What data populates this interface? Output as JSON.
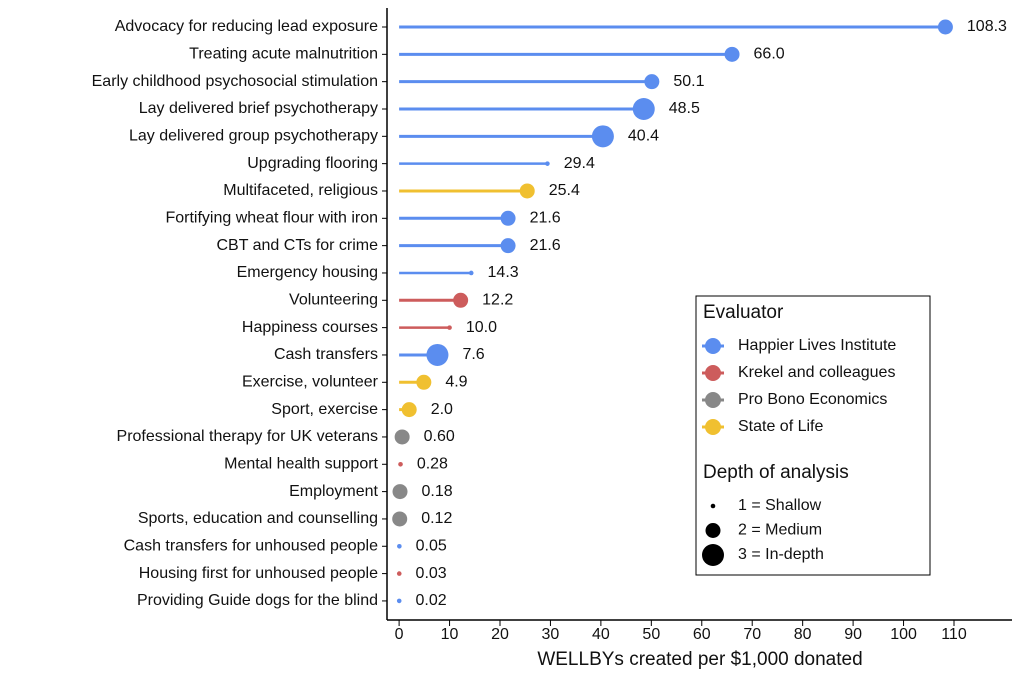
{
  "chart_data": {
    "type": "lollipop",
    "categories": [
      "Advocacy for reducing lead exposure",
      "Treating acute malnutrition",
      "Early childhood psychosocial stimulation",
      "Lay delivered brief psychotherapy",
      "Lay delivered group psychotherapy",
      "Upgrading flooring",
      "Multifaceted, religious",
      "Fortifying wheat flour with iron",
      "CBT and CTs for crime",
      "Emergency housing",
      "Volunteering",
      "Happiness courses",
      "Cash transfers",
      "Exercise, volunteer",
      "Sport, exercise",
      "Professional therapy for UK veterans",
      "Mental health support",
      "Employment",
      "Sports, education and counselling",
      "Cash transfers for unhoused people",
      "Housing first for unhoused people",
      "Providing Guide dogs for the blind"
    ],
    "values": [
      108.3,
      66.0,
      50.1,
      48.5,
      40.4,
      29.4,
      25.4,
      21.6,
      21.6,
      14.3,
      12.2,
      10.0,
      7.6,
      4.9,
      2.0,
      0.6,
      0.28,
      0.18,
      0.12,
      0.05,
      0.03,
      0.02
    ],
    "value_labels": [
      "108.3",
      "66.0",
      "50.1",
      "48.5",
      "40.4",
      "29.4",
      "25.4",
      "21.6",
      "21.6",
      "14.3",
      "12.2",
      "10.0",
      "7.6",
      "4.9",
      "2.0",
      "0.60",
      "0.28",
      "0.18",
      "0.12",
      "0.05",
      "0.03",
      "0.02"
    ],
    "evaluator": [
      "Happier Lives Institute",
      "Happier Lives Institute",
      "Happier Lives Institute",
      "Happier Lives Institute",
      "Happier Lives Institute",
      "Happier Lives Institute",
      "State of Life",
      "Happier Lives Institute",
      "Happier Lives Institute",
      "Happier Lives Institute",
      "Krekel and colleagues",
      "Krekel and colleagues",
      "Happier Lives Institute",
      "State of Life",
      "State of Life",
      "Pro Bono Economics",
      "Krekel and colleagues",
      "Pro Bono Economics",
      "Pro Bono Economics",
      "Happier Lives Institute",
      "Krekel and colleagues",
      "Happier Lives Institute"
    ],
    "depth": [
      2,
      2,
      2,
      3,
      3,
      1,
      2,
      2,
      2,
      1,
      2,
      1,
      3,
      2,
      2,
      2,
      1,
      2,
      2,
      1,
      1,
      1
    ],
    "xlabel": "WELLBYs created per $1,000 donated",
    "xlim": [
      -2.4,
      121.5
    ],
    "xticks": [
      0,
      10,
      20,
      30,
      40,
      50,
      60,
      70,
      80,
      90,
      100,
      110
    ],
    "legend": {
      "title": "Evaluator",
      "series": [
        {
          "name": "Happier Lives Institute",
          "color": "#5b8def"
        },
        {
          "name": "Krekel and colleagues",
          "color": "#cd5c5c"
        },
        {
          "name": "Pro Bono Economics",
          "color": "#888888"
        },
        {
          "name": "State of Life",
          "color": "#f0c030"
        }
      ]
    },
    "depth_legend": {
      "title": "Depth of analysis",
      "items": [
        {
          "value": 1,
          "label": "1 = Shallow"
        },
        {
          "value": 2,
          "label": "2 = Medium"
        },
        {
          "value": 3,
          "label": "3 = In-depth"
        }
      ]
    }
  }
}
